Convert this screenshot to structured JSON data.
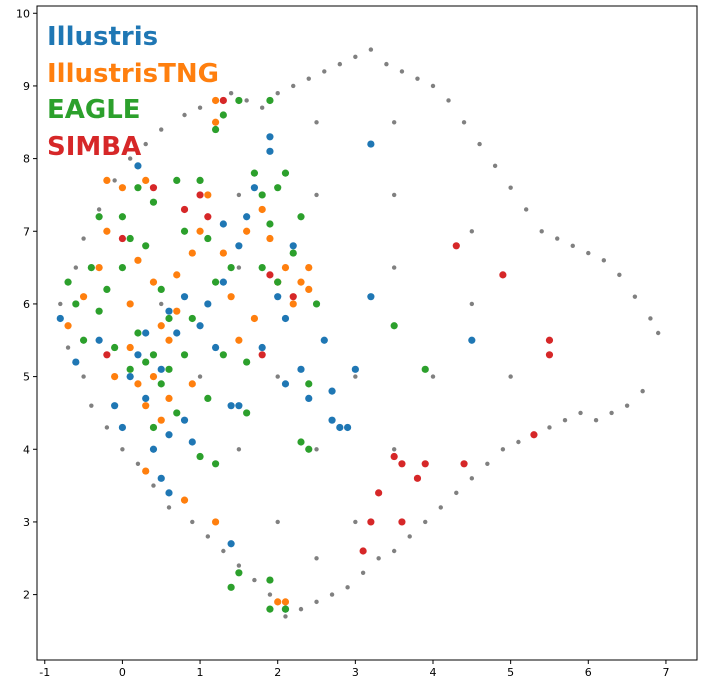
{
  "chart_data": {
    "type": "scatter",
    "title": "",
    "xlabel": "",
    "ylabel": "",
    "xlim": [
      -1.1,
      7.4
    ],
    "ylim": [
      1.1,
      10.1
    ],
    "xticks": [
      -1,
      0,
      1,
      2,
      3,
      4,
      5,
      6,
      7
    ],
    "yticks": [
      2,
      3,
      4,
      5,
      6,
      7,
      8,
      9,
      10
    ],
    "grid": false,
    "legend": "top-left",
    "background_color": "#808080",
    "background_points": [
      [
        -0.8,
        6.0
      ],
      [
        -0.7,
        5.4
      ],
      [
        -0.6,
        6.5
      ],
      [
        -0.5,
        5.0
      ],
      [
        -0.5,
        6.9
      ],
      [
        -0.4,
        4.6
      ],
      [
        -0.3,
        7.3
      ],
      [
        -0.2,
        4.3
      ],
      [
        -0.1,
        7.7
      ],
      [
        0.0,
        4.0
      ],
      [
        0.1,
        8.0
      ],
      [
        0.2,
        3.8
      ],
      [
        0.3,
        8.2
      ],
      [
        0.4,
        3.5
      ],
      [
        0.5,
        8.4
      ],
      [
        0.6,
        3.2
      ],
      [
        0.8,
        8.6
      ],
      [
        0.9,
        3.0
      ],
      [
        1.0,
        8.7
      ],
      [
        1.1,
        2.8
      ],
      [
        1.2,
        8.8
      ],
      [
        1.3,
        2.6
      ],
      [
        1.4,
        8.9
      ],
      [
        1.5,
        2.4
      ],
      [
        1.6,
        8.8
      ],
      [
        1.7,
        2.2
      ],
      [
        1.8,
        8.7
      ],
      [
        1.9,
        2.0
      ],
      [
        2.0,
        8.9
      ],
      [
        2.1,
        1.7
      ],
      [
        2.2,
        9.0
      ],
      [
        2.3,
        1.8
      ],
      [
        2.4,
        9.1
      ],
      [
        2.5,
        1.9
      ],
      [
        2.6,
        9.2
      ],
      [
        2.7,
        2.0
      ],
      [
        2.8,
        9.3
      ],
      [
        2.9,
        2.1
      ],
      [
        3.0,
        9.4
      ],
      [
        3.1,
        2.3
      ],
      [
        3.2,
        9.5
      ],
      [
        3.3,
        2.5
      ],
      [
        3.4,
        9.3
      ],
      [
        3.5,
        2.6
      ],
      [
        3.6,
        9.2
      ],
      [
        3.7,
        2.8
      ],
      [
        3.8,
        9.1
      ],
      [
        3.9,
        3.0
      ],
      [
        4.0,
        9.0
      ],
      [
        4.1,
        3.2
      ],
      [
        4.2,
        8.8
      ],
      [
        4.3,
        3.4
      ],
      [
        4.4,
        8.5
      ],
      [
        4.5,
        3.6
      ],
      [
        4.6,
        8.2
      ],
      [
        4.7,
        3.8
      ],
      [
        4.8,
        7.9
      ],
      [
        4.9,
        4.0
      ],
      [
        5.0,
        7.6
      ],
      [
        5.1,
        4.1
      ],
      [
        5.2,
        7.3
      ],
      [
        5.3,
        4.2
      ],
      [
        5.4,
        7.0
      ],
      [
        5.5,
        4.3
      ],
      [
        5.6,
        6.9
      ],
      [
        5.7,
        4.4
      ],
      [
        5.8,
        6.8
      ],
      [
        5.9,
        4.5
      ],
      [
        6.0,
        6.7
      ],
      [
        6.1,
        4.4
      ],
      [
        6.2,
        6.6
      ],
      [
        6.3,
        4.5
      ],
      [
        6.4,
        6.4
      ],
      [
        6.5,
        4.6
      ],
      [
        6.6,
        6.1
      ],
      [
        6.7,
        4.8
      ],
      [
        6.8,
        5.8
      ],
      [
        6.9,
        5.6
      ],
      [
        0.5,
        6.0
      ],
      [
        1.5,
        6.5
      ],
      [
        2.5,
        6.0
      ],
      [
        3.5,
        6.5
      ],
      [
        4.5,
        6.0
      ],
      [
        1.0,
        5.0
      ],
      [
        2.0,
        5.0
      ],
      [
        3.0,
        5.0
      ],
      [
        4.0,
        5.0
      ],
      [
        5.0,
        5.0
      ],
      [
        1.5,
        7.5
      ],
      [
        2.5,
        7.5
      ],
      [
        3.5,
        7.5
      ],
      [
        4.5,
        7.0
      ],
      [
        1.5,
        4.0
      ],
      [
        2.5,
        4.0
      ],
      [
        3.5,
        4.0
      ],
      [
        2.0,
        3.0
      ],
      [
        3.0,
        3.0
      ],
      [
        2.5,
        2.5
      ],
      [
        3.5,
        8.5
      ],
      [
        2.5,
        8.5
      ]
    ],
    "series": [
      {
        "name": "Illustris",
        "color": "#1f77b4",
        "points": [
          [
            -0.8,
            5.8
          ],
          [
            -0.6,
            5.2
          ],
          [
            -0.3,
            5.5
          ],
          [
            -0.1,
            4.6
          ],
          [
            0.0,
            4.3
          ],
          [
            0.1,
            5.0
          ],
          [
            0.2,
            5.3
          ],
          [
            0.3,
            4.7
          ],
          [
            0.4,
            4.0
          ],
          [
            0.5,
            5.1
          ],
          [
            0.5,
            3.6
          ],
          [
            0.6,
            3.4
          ],
          [
            0.6,
            4.2
          ],
          [
            0.7,
            5.6
          ],
          [
            0.8,
            4.4
          ],
          [
            0.9,
            4.1
          ],
          [
            1.0,
            5.7
          ],
          [
            1.1,
            6.0
          ],
          [
            1.2,
            5.4
          ],
          [
            1.3,
            6.3
          ],
          [
            1.3,
            7.1
          ],
          [
            1.4,
            4.6
          ],
          [
            1.5,
            6.8
          ],
          [
            1.6,
            7.2
          ],
          [
            1.7,
            7.6
          ],
          [
            1.8,
            5.4
          ],
          [
            1.9,
            8.1
          ],
          [
            1.9,
            8.3
          ],
          [
            2.0,
            6.1
          ],
          [
            2.1,
            5.8
          ],
          [
            2.1,
            4.9
          ],
          [
            2.2,
            6.8
          ],
          [
            2.3,
            5.1
          ],
          [
            2.4,
            4.7
          ],
          [
            2.6,
            5.5
          ],
          [
            2.7,
            4.8
          ],
          [
            2.7,
            4.4
          ],
          [
            2.8,
            4.3
          ],
          [
            2.9,
            4.3
          ],
          [
            3.0,
            5.1
          ],
          [
            3.2,
            8.2
          ],
          [
            3.2,
            6.1
          ],
          [
            0.2,
            7.9
          ],
          [
            1.4,
            2.7
          ],
          [
            2.1,
            1.8
          ],
          [
            4.5,
            5.5
          ],
          [
            0.3,
            5.6
          ],
          [
            0.6,
            5.9
          ],
          [
            0.8,
            6.1
          ],
          [
            1.5,
            4.6
          ]
        ]
      },
      {
        "name": "IllustrisTNG",
        "color": "#ff7f0e",
        "points": [
          [
            -0.7,
            5.7
          ],
          [
            -0.5,
            6.1
          ],
          [
            -0.3,
            6.5
          ],
          [
            -0.2,
            7.0
          ],
          [
            -0.2,
            7.7
          ],
          [
            0.0,
            7.6
          ],
          [
            0.1,
            6.0
          ],
          [
            0.2,
            6.6
          ],
          [
            0.3,
            7.7
          ],
          [
            0.3,
            3.7
          ],
          [
            0.4,
            5.0
          ],
          [
            0.4,
            6.3
          ],
          [
            0.5,
            4.4
          ],
          [
            0.6,
            4.7
          ],
          [
            0.6,
            5.5
          ],
          [
            0.7,
            5.9
          ],
          [
            0.8,
            3.3
          ],
          [
            0.9,
            4.9
          ],
          [
            1.0,
            7.0
          ],
          [
            1.1,
            7.5
          ],
          [
            1.2,
            8.8
          ],
          [
            1.2,
            8.5
          ],
          [
            1.2,
            3.0
          ],
          [
            1.3,
            6.7
          ],
          [
            1.4,
            6.1
          ],
          [
            1.5,
            5.5
          ],
          [
            1.6,
            7.0
          ],
          [
            1.7,
            5.8
          ],
          [
            1.8,
            7.3
          ],
          [
            1.9,
            6.9
          ],
          [
            2.0,
            6.3
          ],
          [
            2.1,
            6.5
          ],
          [
            2.2,
            6.0
          ],
          [
            2.3,
            6.3
          ],
          [
            2.4,
            6.5
          ],
          [
            2.4,
            6.2
          ],
          [
            2.0,
            1.9
          ],
          [
            2.1,
            1.9
          ],
          [
            -0.1,
            5.0
          ],
          [
            0.1,
            5.4
          ],
          [
            0.2,
            4.9
          ],
          [
            0.3,
            4.6
          ],
          [
            0.5,
            5.7
          ],
          [
            0.7,
            6.4
          ],
          [
            0.9,
            6.7
          ]
        ]
      },
      {
        "name": "EAGLE",
        "color": "#2ca02c",
        "points": [
          [
            -0.7,
            6.3
          ],
          [
            -0.6,
            6.0
          ],
          [
            -0.5,
            5.5
          ],
          [
            -0.4,
            6.5
          ],
          [
            -0.3,
            5.9
          ],
          [
            -0.3,
            7.2
          ],
          [
            -0.2,
            6.2
          ],
          [
            -0.1,
            5.4
          ],
          [
            0.0,
            7.2
          ],
          [
            0.0,
            6.5
          ],
          [
            0.1,
            5.1
          ],
          [
            0.1,
            6.9
          ],
          [
            0.2,
            5.6
          ],
          [
            0.2,
            7.6
          ],
          [
            0.3,
            5.2
          ],
          [
            0.3,
            6.8
          ],
          [
            0.4,
            5.3
          ],
          [
            0.4,
            7.4
          ],
          [
            0.5,
            4.9
          ],
          [
            0.5,
            6.2
          ],
          [
            0.6,
            5.8
          ],
          [
            0.6,
            5.1
          ],
          [
            0.7,
            4.5
          ],
          [
            0.7,
            7.7
          ],
          [
            0.8,
            5.3
          ],
          [
            0.9,
            5.8
          ],
          [
            1.0,
            7.7
          ],
          [
            1.0,
            3.9
          ],
          [
            1.1,
            6.9
          ],
          [
            1.1,
            4.7
          ],
          [
            1.2,
            6.3
          ],
          [
            1.2,
            3.8
          ],
          [
            1.3,
            8.6
          ],
          [
            1.3,
            5.3
          ],
          [
            1.4,
            6.5
          ],
          [
            1.5,
            8.8
          ],
          [
            1.6,
            5.2
          ],
          [
            1.6,
            4.5
          ],
          [
            1.7,
            7.8
          ],
          [
            1.8,
            7.5
          ],
          [
            1.9,
            8.8
          ],
          [
            1.9,
            7.1
          ],
          [
            2.0,
            6.3
          ],
          [
            2.0,
            7.6
          ],
          [
            2.1,
            7.8
          ],
          [
            2.2,
            6.7
          ],
          [
            2.3,
            7.2
          ],
          [
            2.3,
            4.1
          ],
          [
            2.4,
            4.0
          ],
          [
            2.4,
            4.9
          ],
          [
            2.5,
            6.0
          ],
          [
            3.5,
            5.7
          ],
          [
            3.9,
            5.1
          ],
          [
            1.5,
            2.3
          ],
          [
            1.4,
            2.1
          ],
          [
            1.9,
            2.2
          ],
          [
            1.9,
            1.8
          ],
          [
            2.1,
            1.8
          ],
          [
            0.4,
            4.3
          ],
          [
            0.8,
            7.0
          ],
          [
            1.8,
            6.5
          ],
          [
            1.2,
            8.4
          ]
        ]
      },
      {
        "name": "SIMBA",
        "color": "#d62728",
        "points": [
          [
            -0.2,
            5.3
          ],
          [
            0.0,
            6.9
          ],
          [
            0.4,
            7.6
          ],
          [
            0.8,
            7.3
          ],
          [
            1.0,
            7.5
          ],
          [
            1.1,
            7.2
          ],
          [
            1.3,
            8.8
          ],
          [
            1.8,
            5.3
          ],
          [
            1.9,
            6.4
          ],
          [
            2.2,
            6.1
          ],
          [
            3.1,
            2.6
          ],
          [
            3.2,
            3.0
          ],
          [
            3.3,
            3.4
          ],
          [
            3.5,
            3.9
          ],
          [
            3.6,
            3.8
          ],
          [
            3.6,
            3.0
          ],
          [
            3.8,
            3.6
          ],
          [
            3.9,
            3.8
          ],
          [
            4.3,
            6.8
          ],
          [
            4.4,
            3.8
          ],
          [
            4.9,
            6.4
          ],
          [
            5.3,
            4.2
          ],
          [
            5.5,
            5.5
          ],
          [
            5.5,
            5.3
          ]
        ]
      }
    ]
  }
}
